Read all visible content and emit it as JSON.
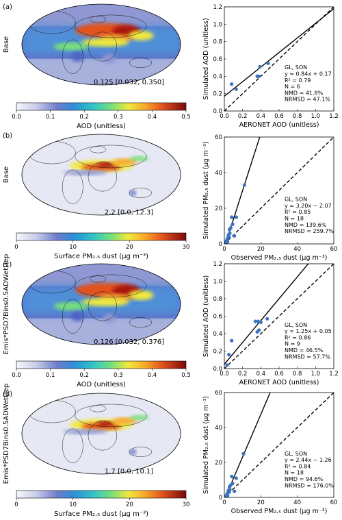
{
  "colors": {
    "palette": [
      "#f7f7fb",
      "#c6cbe8",
      "#8f98d2",
      "#4f64c4",
      "#2c8fd8",
      "#33c7c4",
      "#77e07a",
      "#f0e93c",
      "#f7a82a",
      "#e2521c",
      "#a8120c",
      "#6b0b0b"
    ],
    "ocean": "#e6e8f4",
    "obs_marker": "#3a74c0"
  },
  "chart_data": [
    {
      "type": "heatmap",
      "panel": "(a)",
      "row_label": "Base",
      "summary": "0.125 [0.032, 0.350]",
      "colorbar_label": "AOD (unitless)",
      "colorbar_ticks": [
        "0.0",
        "0.1",
        "0.2",
        "0.3",
        "0.4",
        "0.5"
      ],
      "range": [
        0,
        0.5
      ]
    },
    {
      "type": "scatter",
      "xlabel": "AERONET AOD (unitless)",
      "ylabel": "Simulated AOD (unitless)",
      "xlim": [
        0,
        1.2
      ],
      "ylim": [
        0,
        1.2
      ],
      "xticks": [
        "0.0",
        "0.2",
        "0.4",
        "0.6",
        "0.8",
        "1.0",
        "1.2"
      ],
      "yticks": [
        "0.0",
        "0.2",
        "0.4",
        "0.6",
        "0.8",
        "1.0",
        "1.2"
      ],
      "annotation": [
        "GL, SON",
        "y = 0.84x + 0.17",
        "R² = 0.79",
        "N = 6",
        "NMD = 41.8%",
        "NRMSD = 47.1%"
      ],
      "fit": {
        "slope": 0.84,
        "intercept": 0.17
      },
      "points": [
        [
          0.08,
          0.31
        ],
        [
          0.13,
          0.25
        ],
        [
          0.36,
          0.4
        ],
        [
          0.38,
          0.4
        ],
        [
          0.39,
          0.51
        ],
        [
          0.48,
          0.55
        ]
      ]
    },
    {
      "type": "heatmap",
      "panel": "(b)",
      "row_label": "Base",
      "summary": "2.2 [0.0, 12.3]",
      "colorbar_label": "Surface PM₂.₅ dust (µg m⁻³)",
      "colorbar_ticks": [
        "0",
        "10",
        "20",
        "30"
      ],
      "range": [
        0,
        30
      ]
    },
    {
      "type": "scatter",
      "xlabel": "Observed PM₂.₅ dust (µg m⁻³)",
      "ylabel": "Simulated PM₂.₅ dust (µg m⁻³)",
      "xlim": [
        0,
        60
      ],
      "ylim": [
        0,
        60
      ],
      "xticks": [
        "0",
        "20",
        "40",
        "60"
      ],
      "yticks": [
        "0",
        "20",
        "40",
        "60"
      ],
      "annotation": [
        "GL, SON",
        "y = 3.20x − 2.07",
        "R² = 0.85",
        "N = 18",
        "NMD = 139.6%",
        "NRMSD = 259.7%"
      ],
      "fit": {
        "slope": 3.2,
        "intercept": -2.07
      },
      "points": [
        [
          0.3,
          0.1
        ],
        [
          0.5,
          0.4
        ],
        [
          0.8,
          0.6
        ],
        [
          1.0,
          1.5
        ],
        [
          1.2,
          0.8
        ],
        [
          1.5,
          2.5
        ],
        [
          1.8,
          1.2
        ],
        [
          2.0,
          3.5
        ],
        [
          2.2,
          5.0
        ],
        [
          2.5,
          4.0
        ],
        [
          2.8,
          8.0
        ],
        [
          3.0,
          6.0
        ],
        [
          3.5,
          9.0
        ],
        [
          4.0,
          15.0
        ],
        [
          4.5,
          11.0
        ],
        [
          5.5,
          4.5
        ],
        [
          6.5,
          15.0
        ],
        [
          11.0,
          33.0
        ]
      ]
    },
    {
      "type": "heatmap",
      "panel": "(c)",
      "row_label": "Emis*PSD7Bins0.5ADWetDep",
      "summary": "0.126 [0.032, 0.376]",
      "colorbar_label": "AOD (unitless)",
      "colorbar_ticks": [
        "0.0",
        "0.1",
        "0.2",
        "0.3",
        "0.4",
        "0.5"
      ],
      "range": [
        0,
        0.5
      ]
    },
    {
      "type": "scatter",
      "xlabel": "AERONET AOD (unitless)",
      "ylabel": "Simulated AOD (unitless)",
      "xlim": [
        0,
        1.2
      ],
      "ylim": [
        0,
        1.2
      ],
      "xticks": [
        "0.0",
        "0.2",
        "0.4",
        "0.6",
        "0.8",
        "1.0",
        "1.2"
      ],
      "yticks": [
        "0.0",
        "0.2",
        "0.4",
        "0.6",
        "0.8",
        "1.0",
        "1.2"
      ],
      "annotation": [
        "GL, SON",
        "y = 1.25x + 0.05",
        "R² = 0.86",
        "N = 9",
        "NMD = 46.5%",
        "NRMSD = 57.7%"
      ],
      "fit": {
        "slope": 1.25,
        "intercept": 0.05
      },
      "points": [
        [
          0.03,
          0.04
        ],
        [
          0.05,
          0.16
        ],
        [
          0.08,
          0.32
        ],
        [
          0.34,
          0.54
        ],
        [
          0.36,
          0.42
        ],
        [
          0.37,
          0.54
        ],
        [
          0.38,
          0.44
        ],
        [
          0.4,
          0.53
        ],
        [
          0.47,
          0.57
        ]
      ]
    },
    {
      "type": "heatmap",
      "panel": "(d)",
      "row_label": "Emis*PSD7Bins0.5ADWetDep",
      "summary": "1.7 [0.0, 10.1]",
      "colorbar_label": "Surface PM₂.₅ dust (µg m⁻³)",
      "colorbar_ticks": [
        "0",
        "10",
        "20",
        "30"
      ],
      "range": [
        0,
        30
      ]
    },
    {
      "type": "scatter",
      "xlabel": "Observed PM₂.₅ dust (µg m⁻³)",
      "ylabel": "Simulated PM₂.₅ dust (µg m⁻³)",
      "xlim": [
        0,
        60
      ],
      "ylim": [
        0,
        60
      ],
      "xticks": [
        "0",
        "20",
        "40",
        "60"
      ],
      "yticks": [
        "0",
        "20",
        "40",
        "60"
      ],
      "annotation": [
        "GL, SON",
        "y = 2.44x − 1.26",
        "R² = 0.84",
        "N = 18",
        "NMD = 94.6%",
        "NRMSD = 176.0%"
      ],
      "fit": {
        "slope": 2.44,
        "intercept": -1.26
      },
      "points": [
        [
          0.3,
          0.1
        ],
        [
          0.5,
          0.3
        ],
        [
          0.8,
          0.5
        ],
        [
          1.0,
          1.0
        ],
        [
          1.2,
          0.6
        ],
        [
          1.5,
          2.0
        ],
        [
          1.8,
          1.0
        ],
        [
          2.0,
          2.8
        ],
        [
          2.2,
          4.0
        ],
        [
          2.5,
          3.0
        ],
        [
          2.8,
          6.0
        ],
        [
          3.0,
          4.5
        ],
        [
          3.5,
          7.0
        ],
        [
          4.0,
          12.0
        ],
        [
          4.5,
          8.0
        ],
        [
          5.5,
          3.5
        ],
        [
          6.5,
          11.0
        ],
        [
          10.5,
          25.0
        ]
      ]
    }
  ]
}
